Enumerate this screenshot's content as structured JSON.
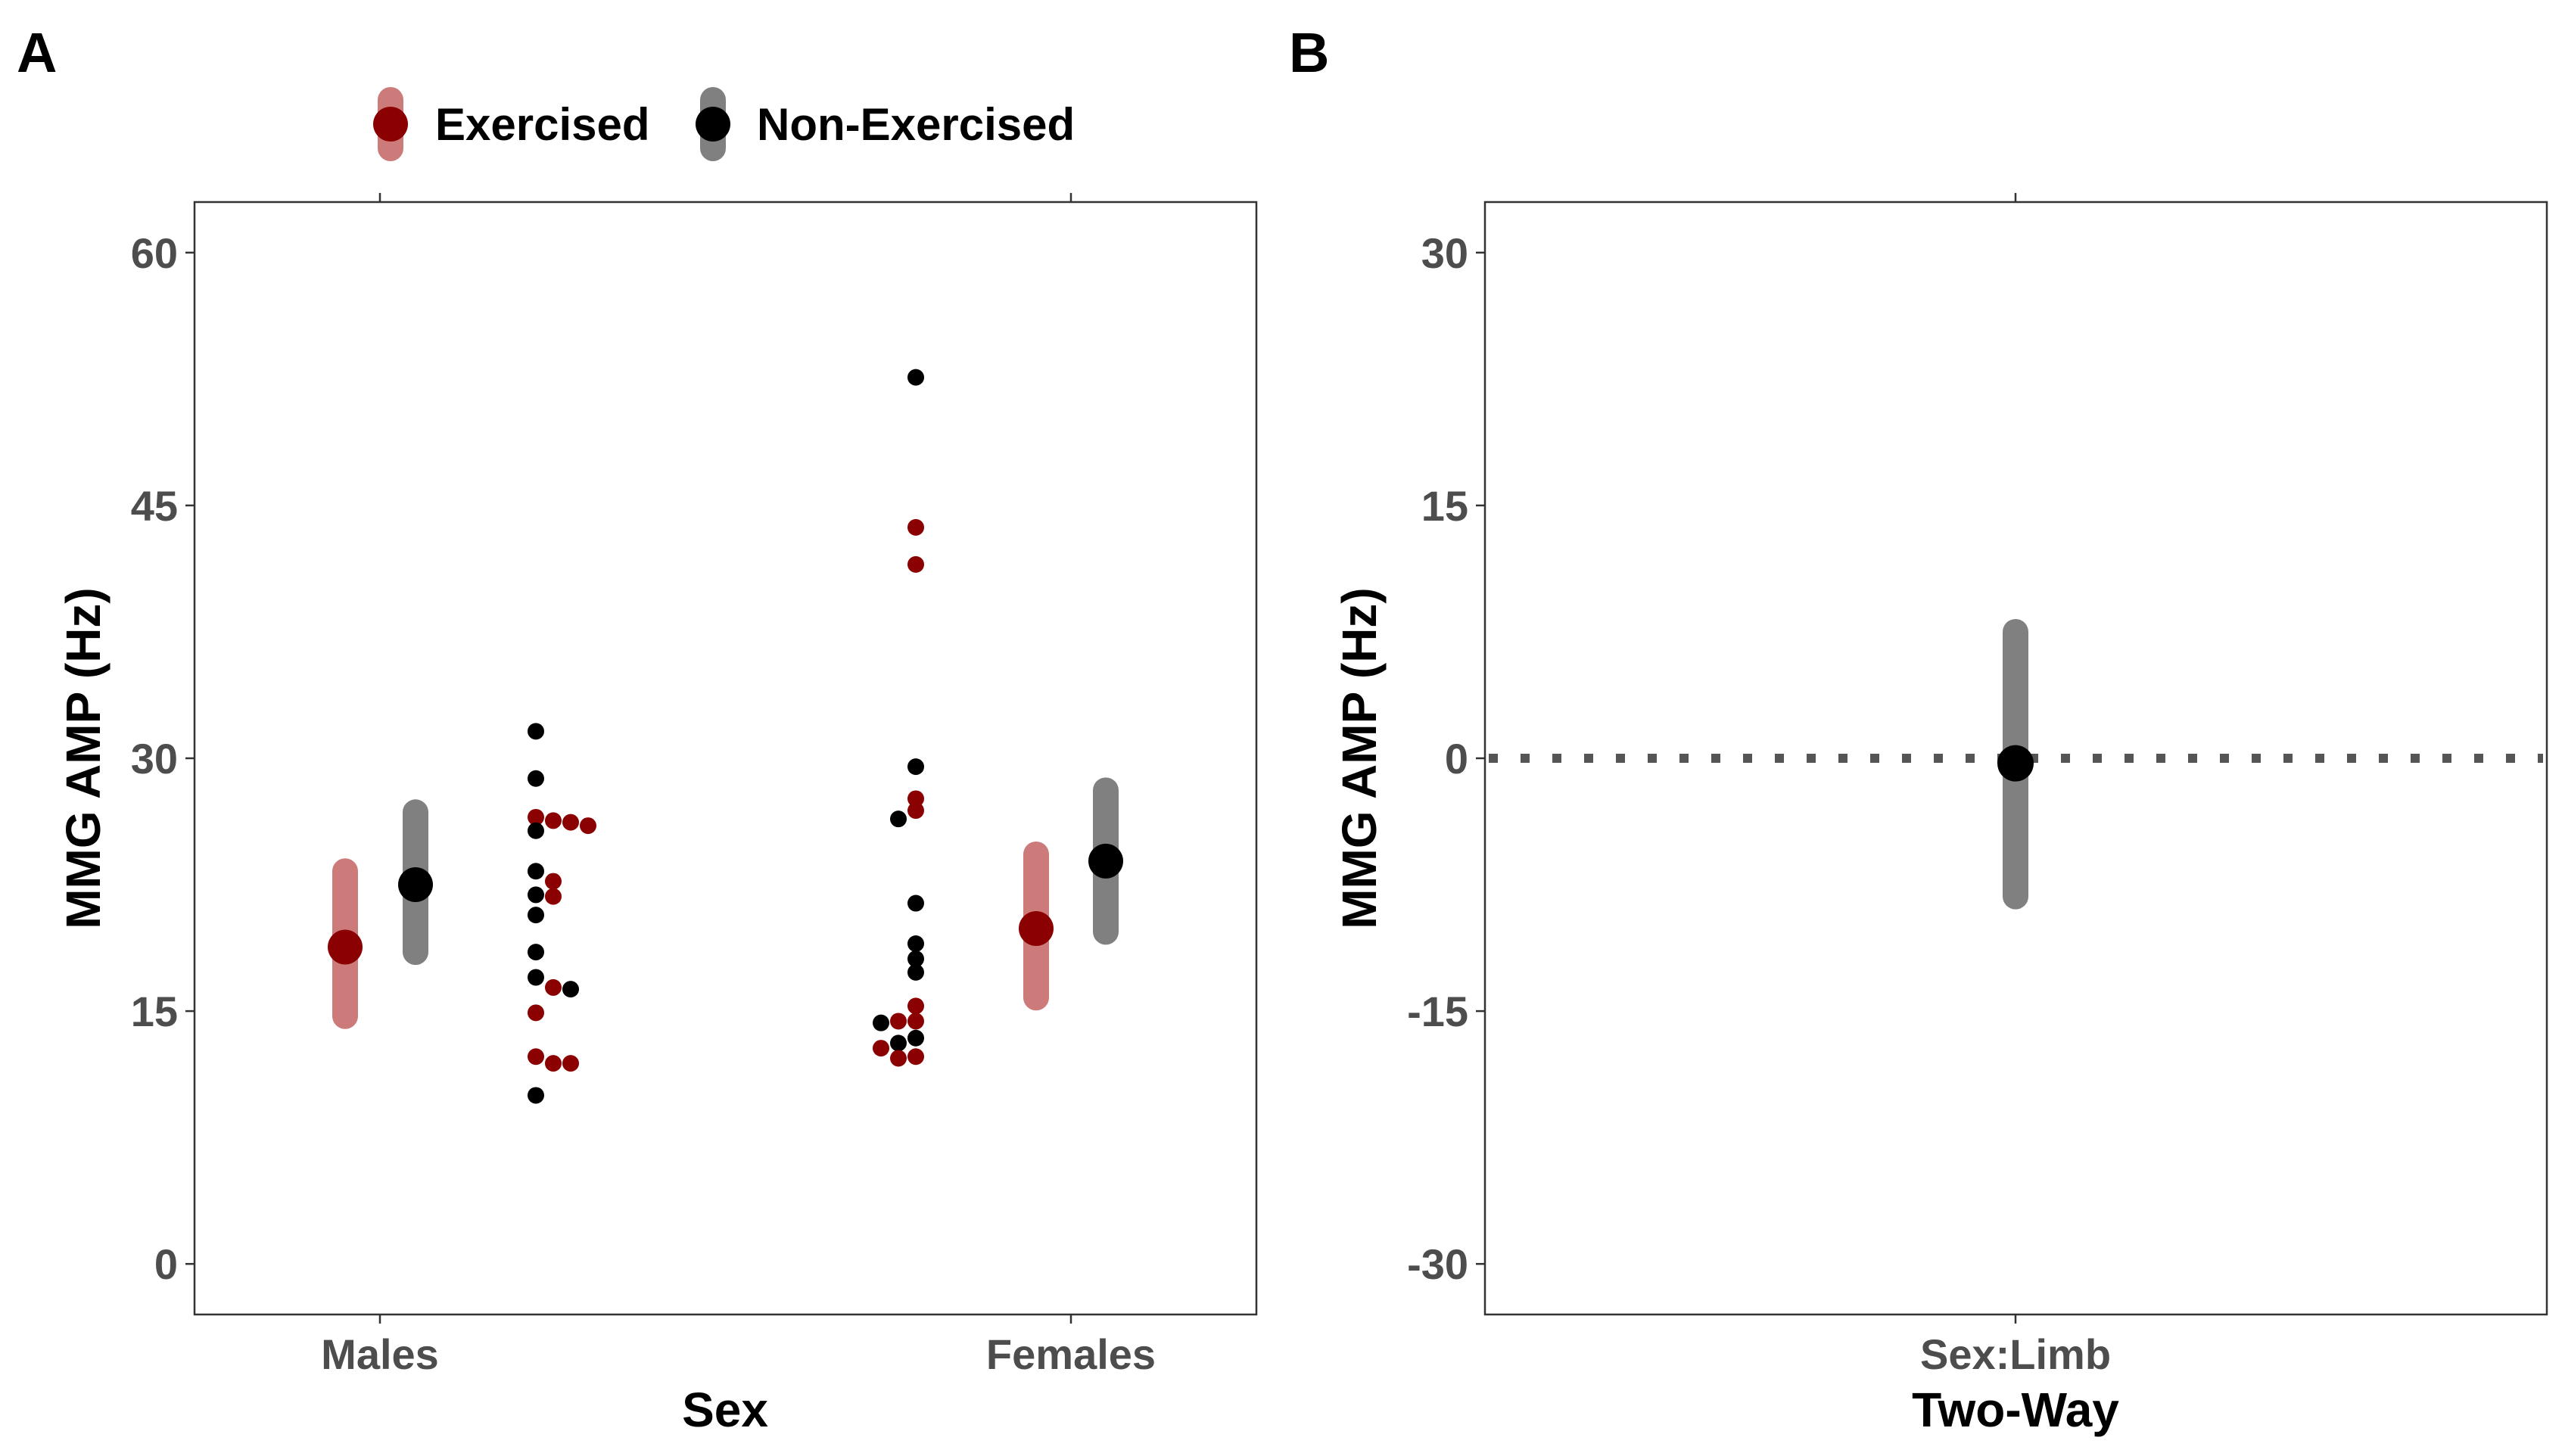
{
  "panels": {
    "a": {
      "letter": "A"
    },
    "b": {
      "letter": "B"
    }
  },
  "legend": {
    "items": [
      {
        "label": "Exercised",
        "color": "#8b0000",
        "ci_color": "#cd7a7a"
      },
      {
        "label": "Non-Exercised",
        "color": "#000000",
        "ci_color": "#808080"
      }
    ]
  },
  "chart_data": [
    {
      "type": "scatter",
      "panel": "A",
      "xlabel": "Sex",
      "ylabel": "MMG AMP (Hz)",
      "categories": [
        "Males",
        "Females"
      ],
      "ylim": [
        -3,
        63
      ],
      "yticks": [
        0,
        15,
        30,
        45,
        60
      ],
      "grid": false,
      "legend_position": "top",
      "summary": [
        {
          "series": "Exercised",
          "category": "Males",
          "mean": 18.8,
          "ci": [
            14.7,
            23.3
          ]
        },
        {
          "series": "Non-Exercised",
          "category": "Males",
          "mean": 22.5,
          "ci": [
            18.5,
            26.8
          ]
        },
        {
          "series": "Exercised",
          "category": "Females",
          "mean": 19.9,
          "ci": [
            15.8,
            24.3
          ]
        },
        {
          "series": "Non-Exercised",
          "category": "Females",
          "mean": 23.9,
          "ci": [
            19.7,
            28.1
          ]
        }
      ],
      "series": [
        {
          "name": "Exercised",
          "points": [
            {
              "category": "Males",
              "y": 26.2
            },
            {
              "category": "Males",
              "y": 26.0
            },
            {
              "category": "Males",
              "y": 26.3
            },
            {
              "category": "Males",
              "y": 26.5
            },
            {
              "category": "Males",
              "y": 22.7
            },
            {
              "category": "Males",
              "y": 21.8
            },
            {
              "category": "Males",
              "y": 16.4
            },
            {
              "category": "Males",
              "y": 14.9
            },
            {
              "category": "Males",
              "y": 12.3
            },
            {
              "category": "Males",
              "y": 11.9
            },
            {
              "category": "Males",
              "y": 11.9
            },
            {
              "category": "Females",
              "y": 43.7
            },
            {
              "category": "Females",
              "y": 41.5
            },
            {
              "category": "Females",
              "y": 27.6
            },
            {
              "category": "Females",
              "y": 26.9
            },
            {
              "category": "Females",
              "y": 15.3
            },
            {
              "category": "Females",
              "y": 14.4
            },
            {
              "category": "Females",
              "y": 14.4
            },
            {
              "category": "Females",
              "y": 12.8
            },
            {
              "category": "Females",
              "y": 12.3
            },
            {
              "category": "Females",
              "y": 12.2
            }
          ]
        },
        {
          "name": "Non-Exercised",
          "points": [
            {
              "category": "Males",
              "y": 31.6
            },
            {
              "category": "Males",
              "y": 28.8
            },
            {
              "category": "Males",
              "y": 25.7
            },
            {
              "category": "Males",
              "y": 23.3
            },
            {
              "category": "Males",
              "y": 21.9
            },
            {
              "category": "Males",
              "y": 20.7
            },
            {
              "category": "Males",
              "y": 18.5
            },
            {
              "category": "Males",
              "y": 17.0
            },
            {
              "category": "Males",
              "y": 16.3
            },
            {
              "category": "Males",
              "y": 10.0
            },
            {
              "category": "Females",
              "y": 52.6
            },
            {
              "category": "Females",
              "y": 29.5
            },
            {
              "category": "Females",
              "y": 26.4
            },
            {
              "category": "Females",
              "y": 21.4
            },
            {
              "category": "Females",
              "y": 19.0
            },
            {
              "category": "Females",
              "y": 18.1
            },
            {
              "category": "Females",
              "y": 17.3
            },
            {
              "category": "Females",
              "y": 14.3
            },
            {
              "category": "Females",
              "y": 13.4
            },
            {
              "category": "Females",
              "y": 13.1
            }
          ]
        }
      ]
    },
    {
      "type": "scatter",
      "panel": "B",
      "xlabel": "Two-Way",
      "ylabel": "MMG AMP (Hz)",
      "categories": [
        "Sex:Limb"
      ],
      "ylim": [
        -33,
        33
      ],
      "yticks": [
        -30,
        -15,
        0,
        15,
        30
      ],
      "grid": false,
      "reference_line": {
        "y": 0,
        "style": "dotted",
        "color": "#555555"
      },
      "estimates": [
        {
          "category": "Sex:Limb",
          "y": -0.3,
          "ci": [
            -8.2,
            7.5
          ],
          "color": "#000000",
          "ci_color": "#808080"
        }
      ]
    }
  ]
}
